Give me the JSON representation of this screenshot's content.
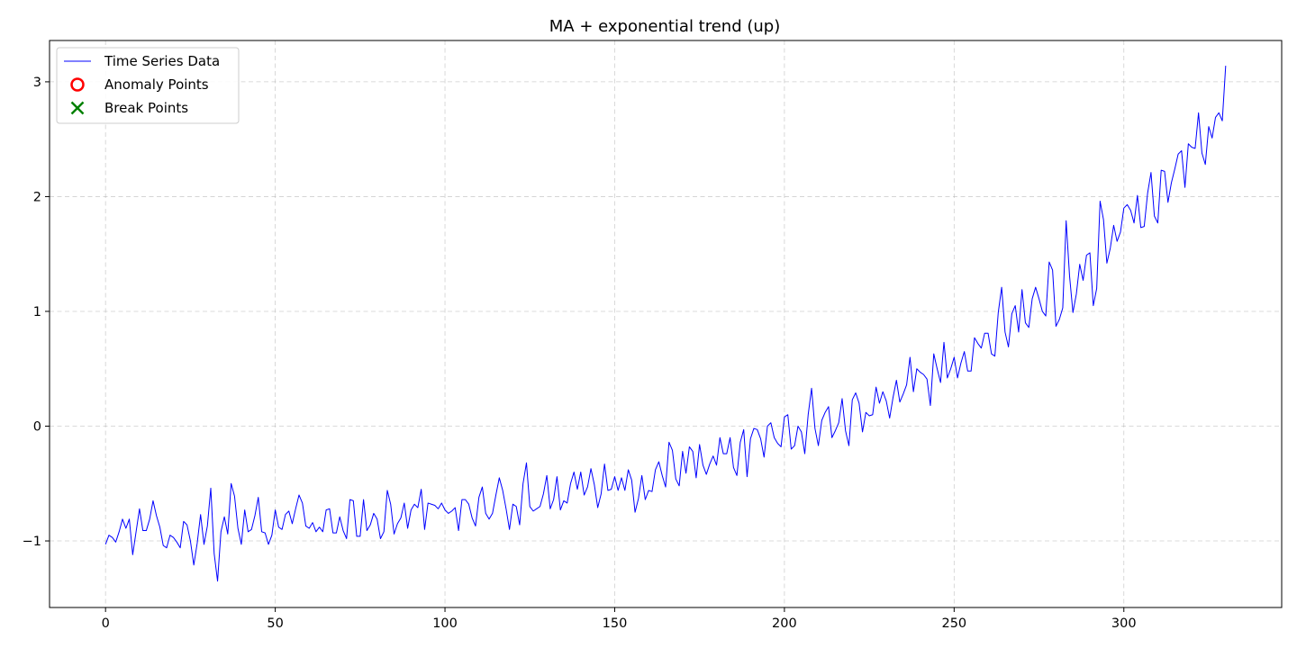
{
  "chart_data": {
    "type": "line",
    "title": "MA + exponential trend (up)",
    "xlabel": "",
    "ylabel": "",
    "xlim": [
      -16.5,
      346.5
    ],
    "ylim": [
      -1.58,
      3.36
    ],
    "xticks": [
      0,
      50,
      100,
      150,
      200,
      250,
      300
    ],
    "xtick_labels": [
      "0",
      "50",
      "100",
      "150",
      "200",
      "250",
      "300"
    ],
    "yticks": [
      -1,
      0,
      1,
      2,
      3
    ],
    "ytick_labels": [
      "−1",
      "0",
      "1",
      "2",
      "3"
    ],
    "grid": true,
    "legend_position": "upper-left",
    "legend": [
      {
        "label": "Time Series Data",
        "kind": "line",
        "color": "#0000ff"
      },
      {
        "label": "Anomaly Points",
        "kind": "circle",
        "color": "#ff0000"
      },
      {
        "label": "Break Points",
        "kind": "x",
        "color": "#008000"
      }
    ],
    "series": [
      {
        "name": "Time Series Data",
        "color": "#0000ff",
        "x_start": 0,
        "x_step": 1,
        "values": [
          -1.03,
          -0.95,
          -0.97,
          -1.01,
          -0.92,
          -0.81,
          -0.89,
          -0.81,
          -1.12,
          -0.92,
          -0.72,
          -0.91,
          -0.91,
          -0.81,
          -0.65,
          -0.78,
          -0.88,
          -1.04,
          -1.06,
          -0.95,
          -0.97,
          -1.01,
          -1.06,
          -0.83,
          -0.86,
          -1.0,
          -1.21,
          -1.02,
          -0.77,
          -1.03,
          -0.87,
          -0.54,
          -1.11,
          -1.35,
          -0.92,
          -0.79,
          -0.94,
          -0.5,
          -0.61,
          -0.89,
          -1.03,
          -0.73,
          -0.92,
          -0.9,
          -0.78,
          -0.62,
          -0.92,
          -0.93,
          -1.03,
          -0.95,
          -0.73,
          -0.88,
          -0.9,
          -0.77,
          -0.74,
          -0.85,
          -0.72,
          -0.6,
          -0.67,
          -0.87,
          -0.89,
          -0.84,
          -0.92,
          -0.88,
          -0.92,
          -0.73,
          -0.72,
          -0.93,
          -0.93,
          -0.79,
          -0.91,
          -0.98,
          -0.64,
          -0.65,
          -0.96,
          -0.96,
          -0.64,
          -0.91,
          -0.86,
          -0.76,
          -0.81,
          -0.98,
          -0.92,
          -0.56,
          -0.68,
          -0.94,
          -0.85,
          -0.8,
          -0.67,
          -0.89,
          -0.73,
          -0.68,
          -0.71,
          -0.55,
          -0.9,
          -0.67,
          -0.68,
          -0.69,
          -0.72,
          -0.67,
          -0.73,
          -0.76,
          -0.74,
          -0.71,
          -0.91,
          -0.64,
          -0.64,
          -0.68,
          -0.8,
          -0.87,
          -0.62,
          -0.53,
          -0.76,
          -0.81,
          -0.76,
          -0.6,
          -0.45,
          -0.56,
          -0.72,
          -0.9,
          -0.68,
          -0.7,
          -0.86,
          -0.5,
          -0.32,
          -0.7,
          -0.74,
          -0.72,
          -0.7,
          -0.59,
          -0.43,
          -0.72,
          -0.64,
          -0.44,
          -0.73,
          -0.65,
          -0.67,
          -0.5,
          -0.4,
          -0.55,
          -0.4,
          -0.6,
          -0.53,
          -0.37,
          -0.51,
          -0.71,
          -0.59,
          -0.33,
          -0.56,
          -0.55,
          -0.44,
          -0.56,
          -0.45,
          -0.56,
          -0.38,
          -0.47,
          -0.75,
          -0.63,
          -0.43,
          -0.64,
          -0.56,
          -0.57,
          -0.38,
          -0.31,
          -0.43,
          -0.53,
          -0.14,
          -0.21,
          -0.46,
          -0.52,
          -0.22,
          -0.41,
          -0.18,
          -0.22,
          -0.45,
          -0.16,
          -0.34,
          -0.42,
          -0.33,
          -0.26,
          -0.34,
          -0.1,
          -0.24,
          -0.24,
          -0.1,
          -0.36,
          -0.43,
          -0.14,
          -0.03,
          -0.44,
          -0.11,
          -0.02,
          -0.03,
          -0.11,
          -0.27,
          0.0,
          0.03,
          -0.1,
          -0.15,
          -0.18,
          0.08,
          0.1,
          -0.2,
          -0.17,
          0.0,
          -0.05,
          -0.24,
          0.1,
          0.33,
          -0.02,
          -0.17,
          0.05,
          0.12,
          0.17,
          -0.1,
          -0.04,
          0.03,
          0.24,
          -0.04,
          -0.17,
          0.23,
          0.29,
          0.2,
          -0.05,
          0.12,
          0.09,
          0.1,
          0.34,
          0.2,
          0.3,
          0.22,
          0.07,
          0.25,
          0.4,
          0.21,
          0.28,
          0.36,
          0.6,
          0.3,
          0.5,
          0.47,
          0.45,
          0.41,
          0.18,
          0.63,
          0.5,
          0.38,
          0.73,
          0.42,
          0.5,
          0.6,
          0.42,
          0.55,
          0.65,
          0.48,
          0.48,
          0.77,
          0.72,
          0.68,
          0.81,
          0.81,
          0.63,
          0.61,
          0.99,
          1.21,
          0.82,
          0.69,
          0.98,
          1.05,
          0.82,
          1.19,
          0.9,
          0.86,
          1.11,
          1.21,
          1.11,
          1.0,
          0.96,
          1.43,
          1.36,
          0.87,
          0.93,
          1.03,
          1.79,
          1.31,
          0.99,
          1.15,
          1.41,
          1.27,
          1.49,
          1.51,
          1.05,
          1.2,
          1.96,
          1.8,
          1.42,
          1.55,
          1.75,
          1.61,
          1.69,
          1.9,
          1.93,
          1.88,
          1.77,
          2.01,
          1.73,
          1.74,
          2.03,
          2.21,
          1.83,
          1.77,
          2.23,
          2.22,
          1.95,
          2.12,
          2.24,
          2.37,
          2.4,
          2.08,
          2.46,
          2.43,
          2.42,
          2.73,
          2.38,
          2.28,
          2.61,
          2.51,
          2.69,
          2.73,
          2.66,
          3.14
        ]
      }
    ]
  }
}
